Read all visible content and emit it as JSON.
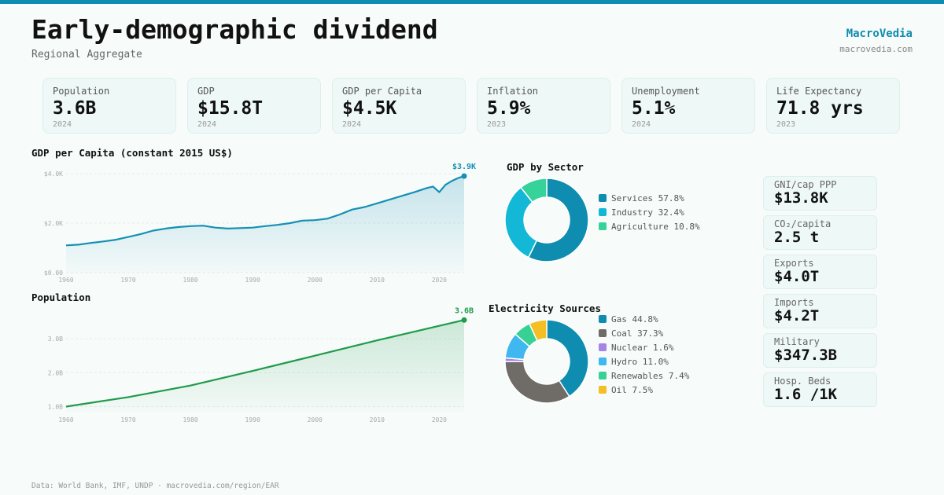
{
  "header": {
    "title": "Early-demographic dividend",
    "subtitle": "Regional Aggregate",
    "brand": "MacroVedia",
    "brand_url": "macrovedia.com"
  },
  "kpis": [
    {
      "label": "Population",
      "value": "3.6B",
      "year": "2024"
    },
    {
      "label": "GDP",
      "value": "$15.8T",
      "year": "2024"
    },
    {
      "label": "GDP per Capita",
      "value": "$4.5K",
      "year": "2024"
    },
    {
      "label": "Inflation",
      "value": "5.9%",
      "year": "2023"
    },
    {
      "label": "Unemployment",
      "value": "5.1%",
      "year": "2024"
    },
    {
      "label": "Life Expectancy",
      "value": "71.8 yrs",
      "year": "2023"
    }
  ],
  "side_stats": [
    {
      "label": "GNI/cap PPP",
      "value": "$13.8K"
    },
    {
      "label": "CO₂/capita",
      "value": "2.5 t"
    },
    {
      "label": "Exports",
      "value": "$4.0T"
    },
    {
      "label": "Imports",
      "value": "$4.2T"
    },
    {
      "label": "Military",
      "value": "$347.3B"
    },
    {
      "label": "Hosp. Beds",
      "value": "1.6 /1K"
    }
  ],
  "footer": "Data: World Bank, IMF, UNDP · macrovedia.com/region/EAR",
  "colors": {
    "accent": "#0f8db0",
    "gdp_line": "#1590b4",
    "pop_line": "#1f9b4b"
  },
  "chart_data": [
    {
      "type": "area",
      "title": "GDP per Capita (constant 2015 US$)",
      "x": [
        1960,
        1962,
        1964,
        1966,
        1968,
        1970,
        1972,
        1974,
        1976,
        1978,
        1980,
        1982,
        1984,
        1986,
        1988,
        1990,
        1992,
        1994,
        1996,
        1998,
        2000,
        2002,
        2004,
        2006,
        2008,
        2010,
        2012,
        2014,
        2016,
        2018,
        2019,
        2020,
        2021,
        2022,
        2023,
        2024
      ],
      "y": [
        1100,
        1130,
        1200,
        1260,
        1330,
        1440,
        1560,
        1700,
        1780,
        1840,
        1880,
        1900,
        1820,
        1780,
        1800,
        1820,
        1880,
        1930,
        2000,
        2100,
        2120,
        2180,
        2350,
        2550,
        2650,
        2800,
        2950,
        3100,
        3250,
        3420,
        3480,
        3250,
        3550,
        3700,
        3820,
        3900
      ],
      "xticks": [
        "1960",
        "1970",
        "1980",
        "1990",
        "2000",
        "2010",
        "2020"
      ],
      "yticks": [
        "$0.00",
        "$2.0K",
        "$4.0K"
      ],
      "ylim": [
        0,
        4000
      ],
      "end_label": "$3.9K"
    },
    {
      "type": "area",
      "title": "Population",
      "x": [
        1960,
        1970,
        1980,
        1990,
        2000,
        2010,
        2020,
        2024
      ],
      "y": [
        1.0,
        1.28,
        1.62,
        2.05,
        2.5,
        2.95,
        3.38,
        3.55
      ],
      "xticks": [
        "1960",
        "1970",
        "1980",
        "1990",
        "2000",
        "2010",
        "2020"
      ],
      "yticks": [
        "1.0B",
        "2.0B",
        "3.0B"
      ],
      "ylim": [
        0.85,
        3.65
      ],
      "end_label": "3.6B"
    },
    {
      "type": "pie",
      "title": "GDP by Sector",
      "categories": [
        "Services",
        "Industry",
        "Agriculture"
      ],
      "values": [
        57.8,
        32.4,
        10.8
      ],
      "legend": [
        "Services 57.8%",
        "Industry 32.4%",
        "Agriculture 10.8%"
      ],
      "colors": [
        "#0f8db0",
        "#12b8d6",
        "#35d39a"
      ]
    },
    {
      "type": "pie",
      "title": "Electricity Sources",
      "categories": [
        "Gas",
        "Coal",
        "Nuclear",
        "Hydro",
        "Renewables",
        "Oil"
      ],
      "values": [
        44.8,
        37.3,
        1.6,
        11.0,
        7.4,
        7.5
      ],
      "legend": [
        "Gas 44.8%",
        "Coal 37.3%",
        "Nuclear 1.6%",
        "Hydro 11.0%",
        "Renewables 7.4%",
        "Oil 7.5%"
      ],
      "colors": [
        "#0f8db0",
        "#6f6b66",
        "#a584e8",
        "#3fb7ef",
        "#37d196",
        "#f4bf24"
      ]
    }
  ]
}
